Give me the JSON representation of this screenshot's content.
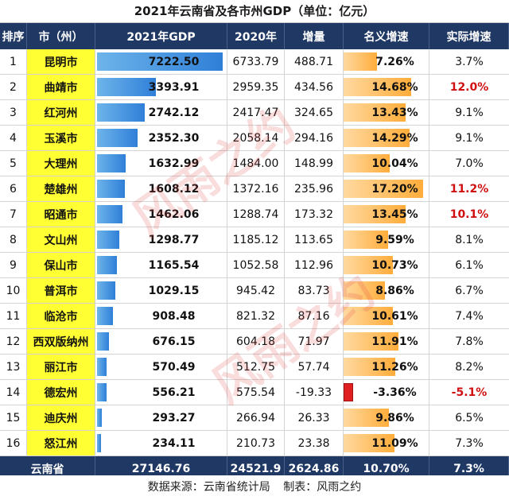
{
  "title": "2021年云南省及各市州GDP（单位：亿元）",
  "headers": [
    "排序",
    "市（州）",
    "2021年GDP",
    "2020年",
    "增量",
    "名义增速",
    "实际增速"
  ],
  "rows": [
    {
      "rank": "1",
      "city": "昆明市",
      "gdp2021": "7222.50",
      "gdp2020": "6733.79",
      "increase": "488.71",
      "nominal": "7.26%",
      "real": "3.7%"
    },
    {
      "rank": "2",
      "city": "曲靖市",
      "gdp2021": "3393.91",
      "gdp2020": "2959.35",
      "increase": "434.56",
      "nominal": "14.68%",
      "real": "12.0%"
    },
    {
      "rank": "3",
      "city": "红河州",
      "gdp2021": "2742.12",
      "gdp2020": "2417.47",
      "increase": "324.65",
      "nominal": "13.43%",
      "real": "9.1%"
    },
    {
      "rank": "4",
      "city": "玉溪市",
      "gdp2021": "2352.30",
      "gdp2020": "2058.14",
      "increase": "294.16",
      "nominal": "14.29%",
      "real": "9.1%"
    },
    {
      "rank": "5",
      "city": "大理州",
      "gdp2021": "1632.99",
      "gdp2020": "1484.00",
      "increase": "148.99",
      "nominal": "10.04%",
      "real": "7.0%"
    },
    {
      "rank": "6",
      "city": "楚雄州",
      "gdp2021": "1608.12",
      "gdp2020": "1372.16",
      "increase": "235.96",
      "nominal": "17.20%",
      "real": "11.2%"
    },
    {
      "rank": "7",
      "city": "昭通市",
      "gdp2021": "1462.06",
      "gdp2020": "1288.74",
      "increase": "173.32",
      "nominal": "13.45%",
      "real": "10.1%"
    },
    {
      "rank": "8",
      "city": "文山州",
      "gdp2021": "1298.77",
      "gdp2020": "1185.12",
      "increase": "113.65",
      "nominal": "9.59%",
      "real": "8.1%"
    },
    {
      "rank": "9",
      "city": "保山市",
      "gdp2021": "1165.54",
      "gdp2020": "1052.58",
      "increase": "112.96",
      "nominal": "10.73%",
      "real": "6.1%"
    },
    {
      "rank": "10",
      "city": "普洱市",
      "gdp2021": "1029.15",
      "gdp2020": "945.42",
      "increase": "83.73",
      "nominal": "8.86%",
      "real": "6.7%"
    },
    {
      "rank": "11",
      "city": "临沧市",
      "gdp2021": "908.48",
      "gdp2020": "821.32",
      "increase": "87.16",
      "nominal": "10.61%",
      "real": "7.4%"
    },
    {
      "rank": "12",
      "city": "西双版纳州",
      "gdp2021": "676.15",
      "gdp2020": "604.18",
      "increase": "71.97",
      "nominal": "11.91%",
      "real": "7.8%"
    },
    {
      "rank": "13",
      "city": "丽江市",
      "gdp2021": "570.49",
      "gdp2020": "512.75",
      "increase": "57.74",
      "nominal": "11.26%",
      "real": "8.2%"
    },
    {
      "rank": "14",
      "city": "德宏州",
      "gdp2021": "556.21",
      "gdp2020": "575.54",
      "increase": "-19.33",
      "nominal": "-3.36%",
      "real": "-5.1%"
    },
    {
      "rank": "15",
      "city": "迪庆州",
      "gdp2021": "293.27",
      "gdp2020": "266.94",
      "increase": "26.33",
      "nominal": "9.86%",
      "real": "6.5%"
    },
    {
      "rank": "16",
      "city": "怒江州",
      "gdp2021": "234.11",
      "gdp2020": "210.73",
      "increase": "23.38",
      "nominal": "11.09%",
      "real": "7.3%"
    }
  ],
  "total": {
    "label": "云南省",
    "gdp2021": "27146.76",
    "gdp2020": "24521.9",
    "increase": "2624.86",
    "nominal": "10.70%",
    "real": "7.3%"
  },
  "footer": {
    "source": "数据来源：云南省统计局",
    "maker": "制表：风雨之约"
  },
  "watermark": "风雨之约",
  "colors": {
    "header_bg": "#1f3864",
    "city_bg": "#ffff33",
    "gdp_bar": "#2f7fd8",
    "growth_bar": "#ffad3a",
    "negative_bar": "#e02020",
    "highlight_text": "#d01010"
  },
  "highlight_real": [
    "12.0%",
    "11.2%",
    "10.1%",
    "-5.1%"
  ],
  "chart_data": {
    "type": "table",
    "title": "2021年云南省及各市州GDP（单位：亿元）",
    "columns": [
      "排序",
      "市（州）",
      "2021年GDP",
      "2020年",
      "增量",
      "名义增速",
      "实际增速"
    ],
    "gdp2021_values": [
      7222.5,
      3393.91,
      2742.12,
      2352.3,
      1632.99,
      1608.12,
      1462.06,
      1298.77,
      1165.54,
      1029.15,
      908.48,
      676.15,
      570.49,
      556.21,
      293.27,
      234.11
    ],
    "nominal_growth_values": [
      7.26,
      14.68,
      13.43,
      14.29,
      10.04,
      17.2,
      13.45,
      9.59,
      10.73,
      8.86,
      10.61,
      11.91,
      11.26,
      -3.36,
      9.86,
      11.09
    ]
  }
}
